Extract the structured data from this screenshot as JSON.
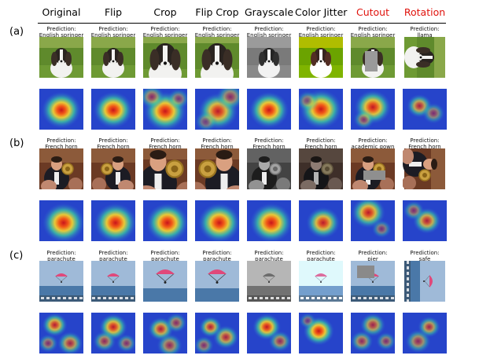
{
  "columns": [
    {
      "label": "Original",
      "color": "#000000"
    },
    {
      "label": "Flip",
      "color": "#000000"
    },
    {
      "label": "Crop",
      "color": "#000000"
    },
    {
      "label": "Flip Crop",
      "color": "#000000"
    },
    {
      "label": "Grayscale",
      "color": "#000000"
    },
    {
      "label": "Color Jitter",
      "color": "#000000"
    },
    {
      "label": "Cutout",
      "color": "#e0120c"
    },
    {
      "label": "Rotation",
      "color": "#e0120c"
    }
  ],
  "prediction_prefix": "Prediction:",
  "rows": [
    {
      "label": "(a)",
      "subject": "dog",
      "predictions": [
        "English springer",
        "English springer",
        "English springer",
        "English springer",
        "English springer",
        "English springer",
        "English springer",
        "llama"
      ]
    },
    {
      "label": "(b)",
      "subject": "horn",
      "predictions": [
        "French horn",
        "French horn",
        "French horn",
        "French horn",
        "French horn",
        "French horn",
        "academic gown",
        "French horn"
      ]
    },
    {
      "label": "(c)",
      "subject": "parachute",
      "predictions": [
        "parachute",
        "parachute",
        "parachute",
        "parachute",
        "parachute",
        "parachute",
        "pier",
        "safe"
      ]
    }
  ]
}
